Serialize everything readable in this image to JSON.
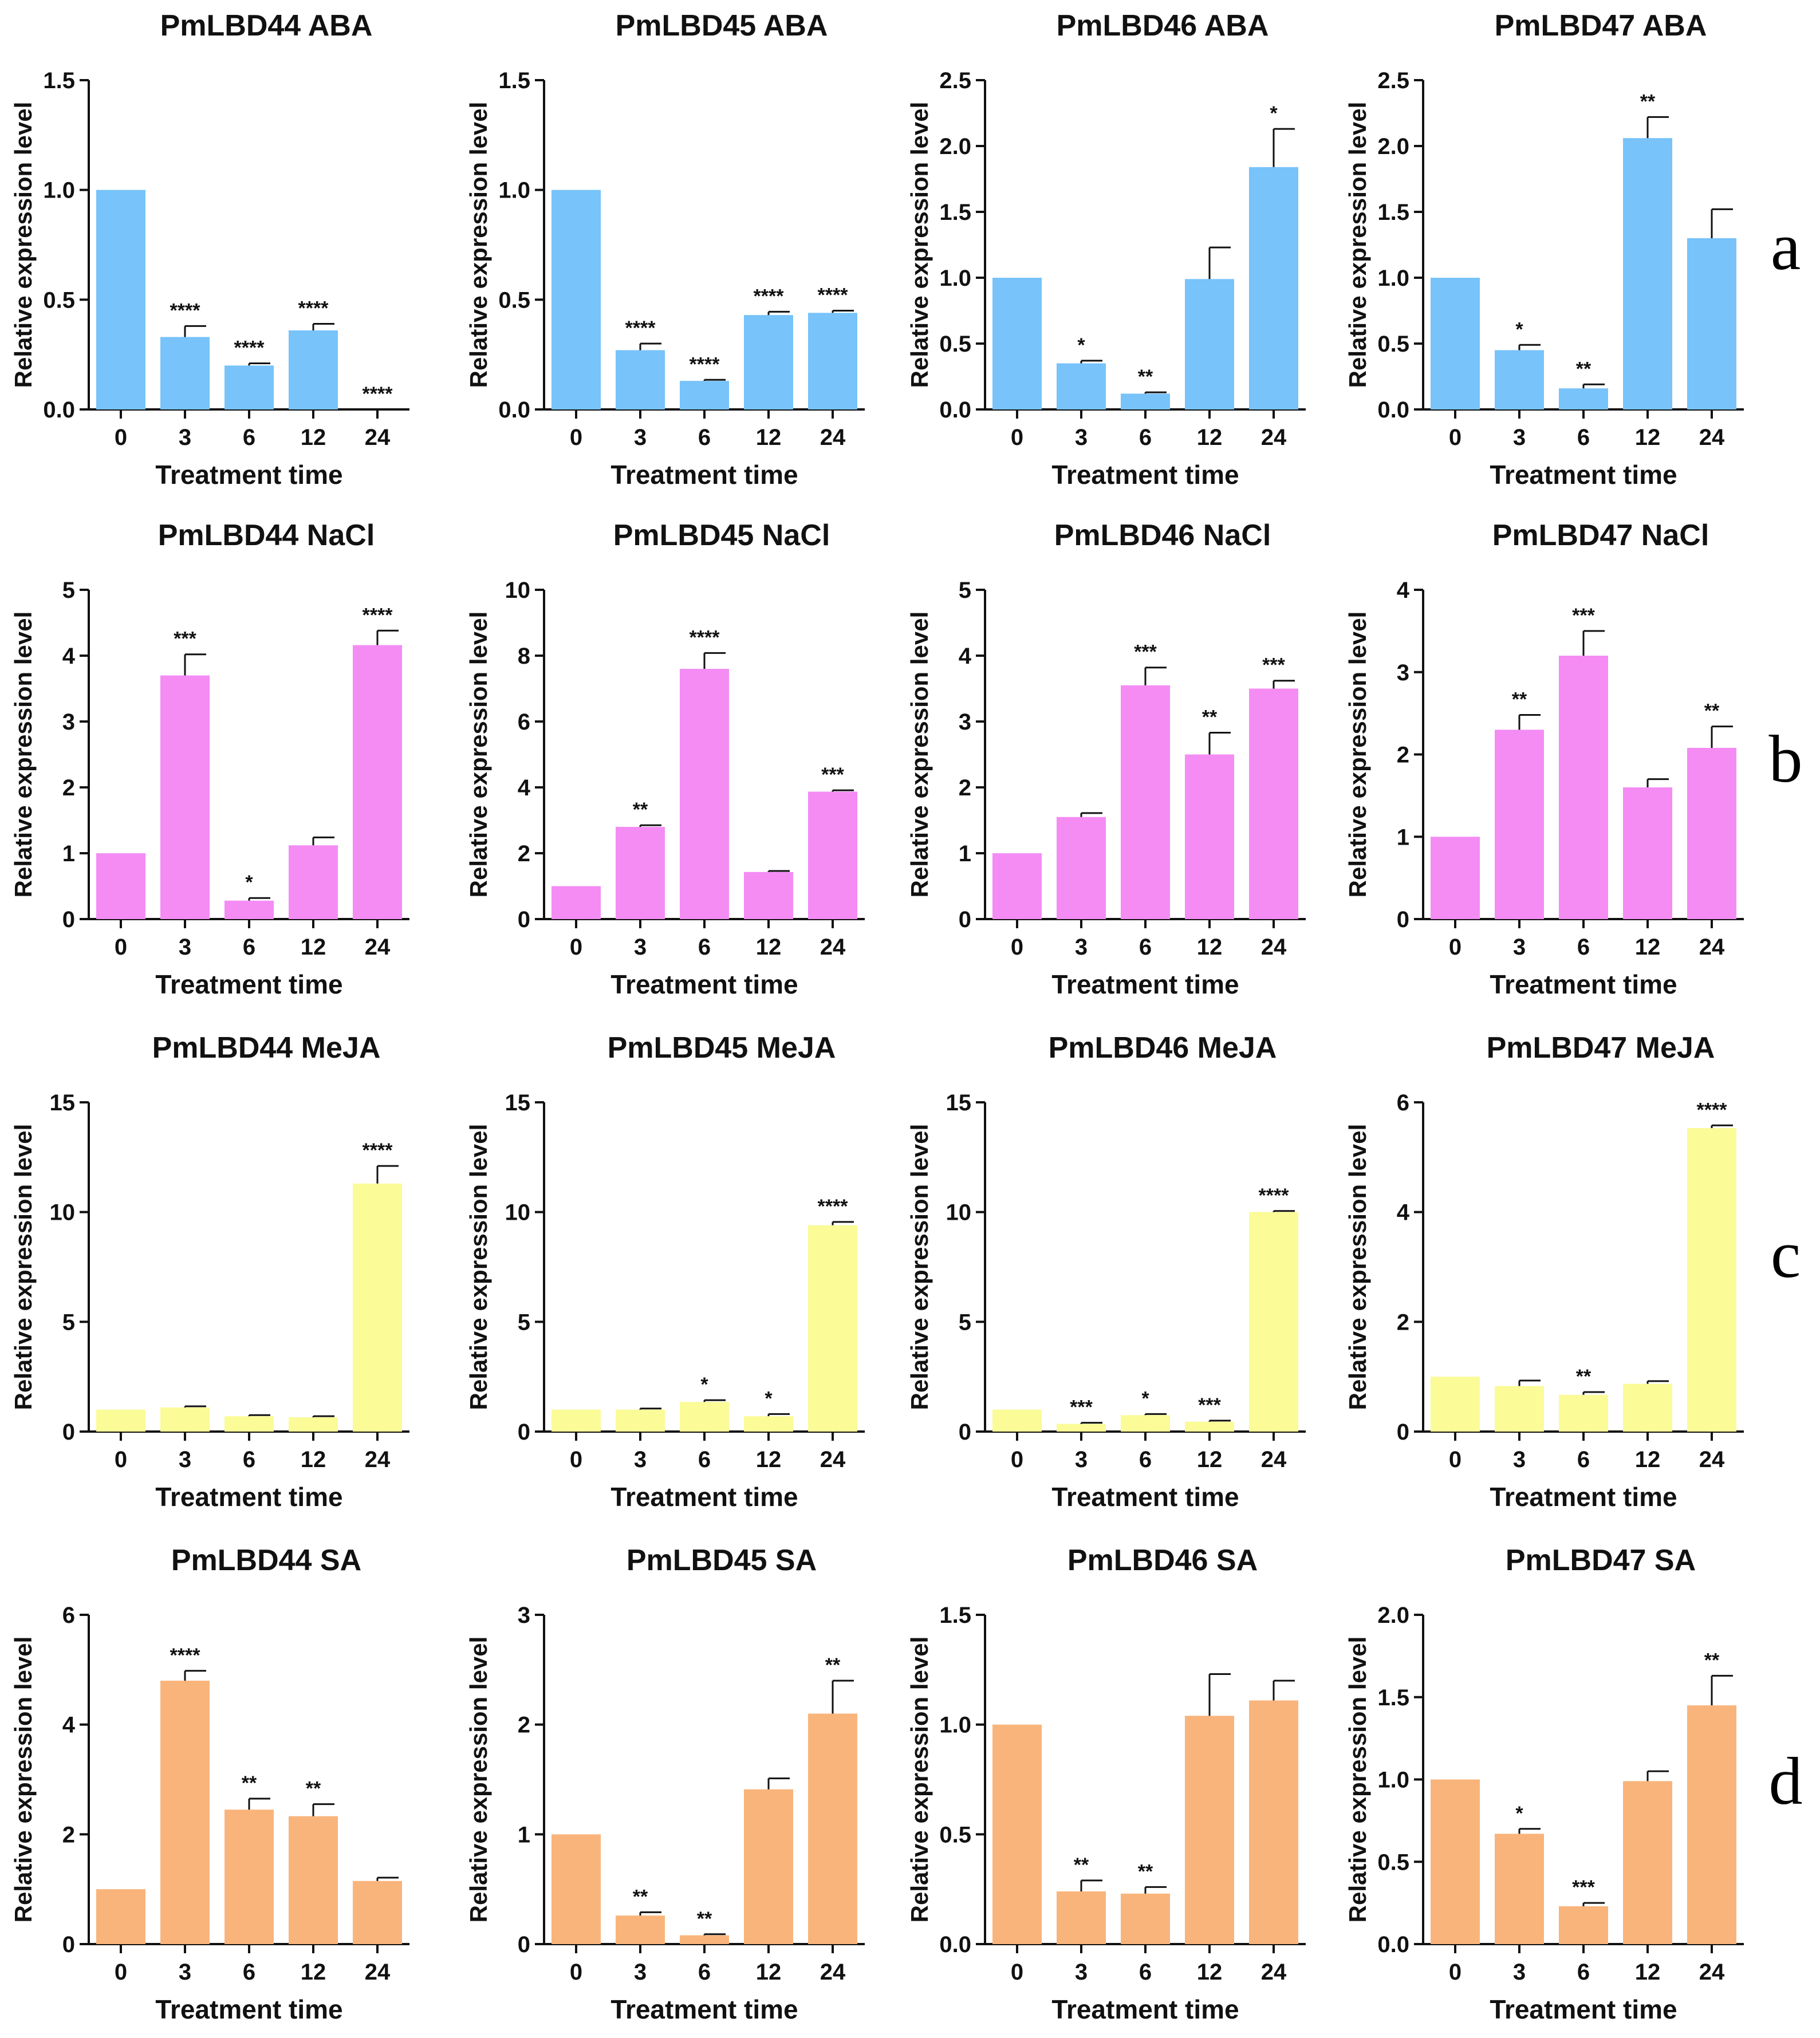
{
  "figure": {
    "row_labels": [
      "a",
      "b",
      "c",
      "d"
    ]
  },
  "chart_data": [
    {
      "type": "bar",
      "row": "a",
      "title": "PmLBD44 ABA",
      "xlabel": "Treatment time",
      "ylabel": "Relative expression level",
      "categories": [
        "0",
        "3",
        "6",
        "12",
        "24"
      ],
      "values": [
        1.0,
        0.33,
        0.2,
        0.36,
        0.0
      ],
      "errors": [
        0,
        0.05,
        0.01,
        0.03,
        0
      ],
      "significance": [
        "",
        "****",
        "****",
        "****",
        "****"
      ],
      "ylim": [
        0,
        1.5
      ],
      "yticks": [
        "0.0",
        "0.5",
        "1.0",
        "1.5"
      ],
      "color": "#77c3fa"
    },
    {
      "type": "bar",
      "row": "a",
      "title": "PmLBD45 ABA",
      "xlabel": "Treatment time",
      "ylabel": "Relative expression level",
      "categories": [
        "0",
        "3",
        "6",
        "12",
        "24"
      ],
      "values": [
        1.0,
        0.27,
        0.13,
        0.43,
        0.44
      ],
      "errors": [
        0,
        0.03,
        0.005,
        0.015,
        0.01
      ],
      "significance": [
        "",
        "****",
        "****",
        "****",
        "****"
      ],
      "ylim": [
        0,
        1.5
      ],
      "yticks": [
        "0.0",
        "0.5",
        "1.0",
        "1.5"
      ],
      "color": "#77c3fa"
    },
    {
      "type": "bar",
      "row": "a",
      "title": "PmLBD46 ABA",
      "xlabel": "Treatment time",
      "ylabel": "Relative expression level",
      "categories": [
        "0",
        "3",
        "6",
        "12",
        "24"
      ],
      "values": [
        1.0,
        0.35,
        0.12,
        0.99,
        1.84
      ],
      "errors": [
        0,
        0.02,
        0.01,
        0.24,
        0.29
      ],
      "significance": [
        "",
        "*",
        "**",
        "",
        "*"
      ],
      "ylim": [
        0,
        2.5
      ],
      "yticks": [
        "0.0",
        "0.5",
        "1.0",
        "1.5",
        "2.0",
        "2.5"
      ],
      "color": "#77c3fa"
    },
    {
      "type": "bar",
      "row": "a",
      "title": "PmLBD47 ABA",
      "xlabel": "Treatment time",
      "ylabel": "Relative expression level",
      "categories": [
        "0",
        "3",
        "6",
        "12",
        "24"
      ],
      "values": [
        1.0,
        0.45,
        0.16,
        2.06,
        1.3
      ],
      "errors": [
        0,
        0.04,
        0.03,
        0.16,
        0.22
      ],
      "significance": [
        "",
        "*",
        "**",
        "**",
        ""
      ],
      "ylim": [
        0,
        2.5
      ],
      "yticks": [
        "0.0",
        "0.5",
        "1.0",
        "1.5",
        "2.0",
        "2.5"
      ],
      "color": "#77c3fa"
    },
    {
      "type": "bar",
      "row": "b",
      "title": "PmLBD44 NaCl",
      "xlabel": "Treatment time",
      "ylabel": "Relative expression level",
      "categories": [
        "0",
        "3",
        "6",
        "12",
        "24"
      ],
      "values": [
        1.0,
        3.7,
        0.28,
        1.12,
        4.16
      ],
      "errors": [
        0,
        0.32,
        0.04,
        0.12,
        0.22
      ],
      "significance": [
        "",
        "***",
        "*",
        "",
        "****"
      ],
      "ylim": [
        0,
        5
      ],
      "yticks": [
        "0",
        "1",
        "2",
        "3",
        "4",
        "5"
      ],
      "color": "#f48cf4"
    },
    {
      "type": "bar",
      "row": "b",
      "title": "PmLBD45 NaCl",
      "xlabel": "Treatment time",
      "ylabel": "Relative expression level",
      "categories": [
        "0",
        "3",
        "6",
        "12",
        "24"
      ],
      "values": [
        1.0,
        2.8,
        7.6,
        1.43,
        3.87
      ],
      "errors": [
        0,
        0.05,
        0.48,
        0.03,
        0.04
      ],
      "significance": [
        "",
        "**",
        "****",
        "",
        "***"
      ],
      "ylim": [
        0,
        10
      ],
      "yticks": [
        "0",
        "2",
        "4",
        "6",
        "8",
        "10"
      ],
      "color": "#f48cf4"
    },
    {
      "type": "bar",
      "row": "b",
      "title": "PmLBD46 NaCl",
      "xlabel": "Treatment time",
      "ylabel": "Relative expression level",
      "categories": [
        "0",
        "3",
        "6",
        "12",
        "24"
      ],
      "values": [
        1.0,
        1.55,
        3.55,
        2.5,
        3.5
      ],
      "errors": [
        0,
        0.06,
        0.27,
        0.33,
        0.12
      ],
      "significance": [
        "",
        "",
        "***",
        "**",
        "***"
      ],
      "ylim": [
        0,
        5
      ],
      "yticks": [
        "0",
        "1",
        "2",
        "3",
        "4",
        "5"
      ],
      "color": "#f48cf4"
    },
    {
      "type": "bar",
      "row": "b",
      "title": "PmLBD47 NaCl",
      "xlabel": "Treatment time",
      "ylabel": "Relative expression level",
      "categories": [
        "0",
        "3",
        "6",
        "12",
        "24"
      ],
      "values": [
        1.0,
        2.3,
        3.2,
        1.6,
        2.08
      ],
      "errors": [
        0,
        0.18,
        0.3,
        0.1,
        0.26
      ],
      "significance": [
        "",
        "**",
        "***",
        "",
        "**"
      ],
      "ylim": [
        0,
        4
      ],
      "yticks": [
        "0",
        "1",
        "2",
        "3",
        "4"
      ],
      "color": "#f48cf4"
    },
    {
      "type": "bar",
      "row": "c",
      "title": "PmLBD44 MeJA",
      "xlabel": "Treatment time",
      "ylabel": "Relative expression level",
      "categories": [
        "0",
        "3",
        "6",
        "12",
        "24"
      ],
      "values": [
        1.0,
        1.1,
        0.7,
        0.65,
        11.3
      ],
      "errors": [
        0,
        0.05,
        0.05,
        0.05,
        0.8
      ],
      "significance": [
        "",
        "",
        "",
        "",
        "****"
      ],
      "ylim": [
        0,
        15
      ],
      "yticks": [
        "0",
        "5",
        "10",
        "15"
      ],
      "color": "#fbfb98"
    },
    {
      "type": "bar",
      "row": "c",
      "title": "PmLBD45 MeJA",
      "xlabel": "Treatment time",
      "ylabel": "Relative expression level",
      "categories": [
        "0",
        "3",
        "6",
        "12",
        "24"
      ],
      "values": [
        1.0,
        1.0,
        1.35,
        0.7,
        9.4
      ],
      "errors": [
        0,
        0.05,
        0.08,
        0.1,
        0.15
      ],
      "significance": [
        "",
        "",
        "*",
        "*",
        "****"
      ],
      "ylim": [
        0,
        15
      ],
      "yticks": [
        "0",
        "5",
        "10",
        "15"
      ],
      "color": "#fbfb98"
    },
    {
      "type": "bar",
      "row": "c",
      "title": "PmLBD46 MeJA",
      "xlabel": "Treatment time",
      "ylabel": "Relative expression level",
      "categories": [
        "0",
        "3",
        "6",
        "12",
        "24"
      ],
      "values": [
        1.0,
        0.35,
        0.75,
        0.45,
        10.0
      ],
      "errors": [
        0,
        0.05,
        0.05,
        0.05,
        0.05
      ],
      "significance": [
        "",
        "***",
        "*",
        "***",
        "****"
      ],
      "ylim": [
        0,
        15
      ],
      "yticks": [
        "0",
        "5",
        "10",
        "15"
      ],
      "color": "#fbfb98"
    },
    {
      "type": "bar",
      "row": "c",
      "title": "PmLBD47 MeJA",
      "xlabel": "Treatment time",
      "ylabel": "Relative expression level",
      "categories": [
        "0",
        "3",
        "6",
        "12",
        "24"
      ],
      "values": [
        1.0,
        0.83,
        0.67,
        0.87,
        5.53
      ],
      "errors": [
        0,
        0.1,
        0.05,
        0.05,
        0.05
      ],
      "significance": [
        "",
        "",
        "**",
        "",
        "****"
      ],
      "ylim": [
        0,
        6
      ],
      "yticks": [
        "0",
        "2",
        "4",
        "6"
      ],
      "color": "#fbfb98"
    },
    {
      "type": "bar",
      "row": "d",
      "title": "PmLBD44 SA",
      "xlabel": "Treatment time",
      "ylabel": "Relative expression level",
      "categories": [
        "0",
        "3",
        "6",
        "12",
        "24"
      ],
      "values": [
        1.0,
        4.8,
        2.45,
        2.33,
        1.15
      ],
      "errors": [
        0,
        0.18,
        0.2,
        0.22,
        0.06
      ],
      "significance": [
        "",
        "****",
        "**",
        "**",
        ""
      ],
      "ylim": [
        0,
        6
      ],
      "yticks": [
        "0",
        "2",
        "4",
        "6"
      ],
      "color": "#f9b47b"
    },
    {
      "type": "bar",
      "row": "d",
      "title": "PmLBD45 SA",
      "xlabel": "Treatment time",
      "ylabel": "Relative expression level",
      "categories": [
        "0",
        "3",
        "6",
        "12",
        "24"
      ],
      "values": [
        1.0,
        0.26,
        0.08,
        1.41,
        2.1
      ],
      "errors": [
        0,
        0.03,
        0.01,
        0.1,
        0.3
      ],
      "significance": [
        "",
        "**",
        "**",
        "",
        "**"
      ],
      "ylim": [
        0,
        3
      ],
      "yticks": [
        "0",
        "1",
        "2",
        "3"
      ],
      "color": "#f9b47b"
    },
    {
      "type": "bar",
      "row": "d",
      "title": "PmLBD46 SA",
      "xlabel": "Treatment time",
      "ylabel": "Relative expression level",
      "categories": [
        "0",
        "3",
        "6",
        "12",
        "24"
      ],
      "values": [
        1.0,
        0.24,
        0.23,
        1.04,
        1.11
      ],
      "errors": [
        0,
        0.05,
        0.03,
        0.19,
        0.09
      ],
      "significance": [
        "",
        "**",
        "**",
        "",
        ""
      ],
      "ylim": [
        0,
        1.5
      ],
      "yticks": [
        "0.0",
        "0.5",
        "1.0",
        "1.5"
      ],
      "color": "#f9b47b"
    },
    {
      "type": "bar",
      "row": "d",
      "title": "PmLBD47 SA",
      "xlabel": "Treatment time",
      "ylabel": "Relative expression level",
      "categories": [
        "0",
        "3",
        "6",
        "12",
        "24"
      ],
      "values": [
        1.0,
        0.67,
        0.23,
        0.99,
        1.45
      ],
      "errors": [
        0,
        0.03,
        0.02,
        0.06,
        0.18
      ],
      "significance": [
        "",
        "*",
        "***",
        "",
        "**"
      ],
      "ylim": [
        0,
        2.0
      ],
      "yticks": [
        "0.0",
        "0.5",
        "1.0",
        "1.5",
        "2.0"
      ],
      "color": "#f9b47b"
    }
  ]
}
